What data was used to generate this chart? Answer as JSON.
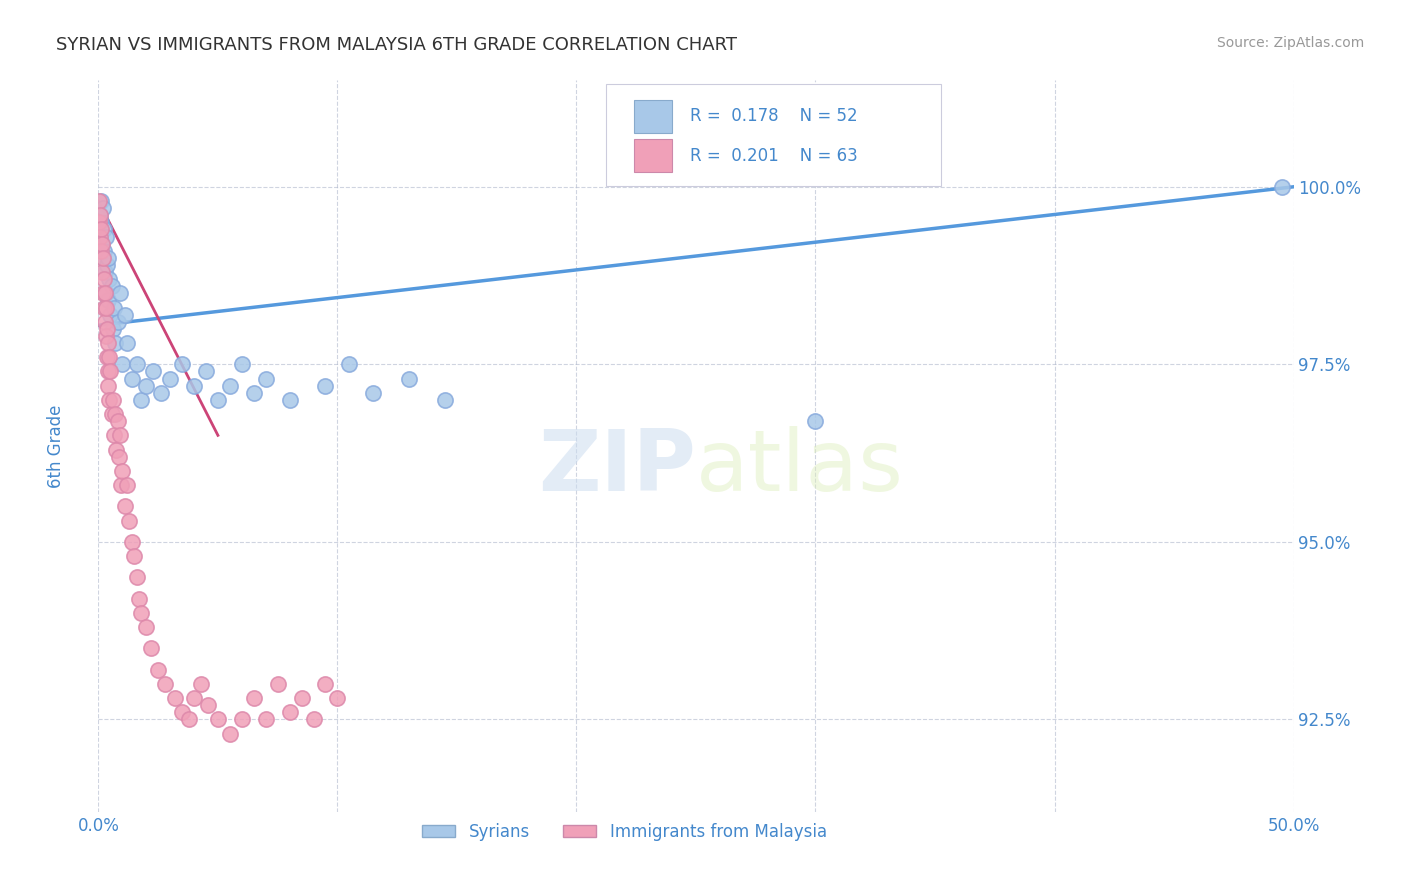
{
  "title": "SYRIAN VS IMMIGRANTS FROM MALAYSIA 6TH GRADE CORRELATION CHART",
  "source": "Source: ZipAtlas.com",
  "ylabel": "6th Grade",
  "ytick_values": [
    92.5,
    95.0,
    97.5,
    100.0
  ],
  "ymin": 91.2,
  "ymax": 101.5,
  "xmin": 0.0,
  "xmax": 50.0,
  "color_blue": "#a8c8e8",
  "color_pink": "#f0a0b8",
  "color_blue_dark": "#5599dd",
  "color_pink_line": "#cc4477",
  "color_text": "#4488cc",
  "legend_label1": "Syrians",
  "legend_label2": "Immigrants from Malaysia",
  "trend_blue_x0": 0.0,
  "trend_blue_y0": 98.05,
  "trend_blue_x1": 50.0,
  "trend_blue_y1": 100.0,
  "trend_pink_x0": 0.0,
  "trend_pink_y0": 99.8,
  "trend_pink_x1": 5.0,
  "trend_pink_y1": 96.5,
  "syrians_x": [
    0.05,
    0.07,
    0.1,
    0.12,
    0.15,
    0.18,
    0.2,
    0.22,
    0.25,
    0.28,
    0.3,
    0.32,
    0.35,
    0.38,
    0.4,
    0.45,
    0.5,
    0.55,
    0.6,
    0.65,
    0.7,
    0.8,
    0.9,
    1.0,
    1.1,
    1.2,
    1.4,
    1.6,
    1.8,
    2.0,
    2.3,
    2.6,
    3.0,
    3.5,
    4.0,
    4.5,
    5.0,
    5.5,
    6.0,
    6.5,
    7.0,
    8.0,
    9.5,
    10.5,
    11.5,
    13.0,
    14.5,
    30.0,
    49.5
  ],
  "syrians_y": [
    99.3,
    99.6,
    99.5,
    99.8,
    99.2,
    99.7,
    99.0,
    99.4,
    99.1,
    98.8,
    99.3,
    98.5,
    98.9,
    99.0,
    98.4,
    98.7,
    98.2,
    98.6,
    98.0,
    98.3,
    97.8,
    98.1,
    98.5,
    97.5,
    98.2,
    97.8,
    97.3,
    97.5,
    97.0,
    97.2,
    97.4,
    97.1,
    97.3,
    97.5,
    97.2,
    97.4,
    97.0,
    97.2,
    97.5,
    97.1,
    97.3,
    97.0,
    97.2,
    97.5,
    97.1,
    97.3,
    97.0,
    96.7,
    100.0
  ],
  "malaysia_x": [
    0.02,
    0.04,
    0.06,
    0.08,
    0.1,
    0.12,
    0.14,
    0.16,
    0.18,
    0.2,
    0.22,
    0.24,
    0.26,
    0.28,
    0.3,
    0.32,
    0.34,
    0.36,
    0.38,
    0.4,
    0.42,
    0.44,
    0.46,
    0.5,
    0.55,
    0.6,
    0.65,
    0.7,
    0.75,
    0.8,
    0.85,
    0.9,
    0.95,
    1.0,
    1.1,
    1.2,
    1.3,
    1.4,
    1.5,
    1.6,
    1.7,
    1.8,
    2.0,
    2.2,
    2.5,
    2.8,
    3.2,
    3.5,
    3.8,
    4.0,
    4.3,
    4.6,
    5.0,
    5.5,
    6.0,
    6.5,
    7.0,
    7.5,
    8.0,
    8.5,
    9.0,
    9.5,
    10.0
  ],
  "malaysia_y": [
    99.5,
    99.8,
    99.3,
    99.6,
    99.1,
    99.4,
    98.8,
    99.2,
    98.5,
    99.0,
    98.3,
    98.7,
    98.1,
    98.5,
    97.9,
    98.3,
    97.6,
    98.0,
    97.4,
    97.8,
    97.2,
    97.6,
    97.0,
    97.4,
    96.8,
    97.0,
    96.5,
    96.8,
    96.3,
    96.7,
    96.2,
    96.5,
    95.8,
    96.0,
    95.5,
    95.8,
    95.3,
    95.0,
    94.8,
    94.5,
    94.2,
    94.0,
    93.8,
    93.5,
    93.2,
    93.0,
    92.8,
    92.6,
    92.5,
    92.8,
    93.0,
    92.7,
    92.5,
    92.3,
    92.5,
    92.8,
    92.5,
    93.0,
    92.6,
    92.8,
    92.5,
    93.0,
    92.8
  ]
}
